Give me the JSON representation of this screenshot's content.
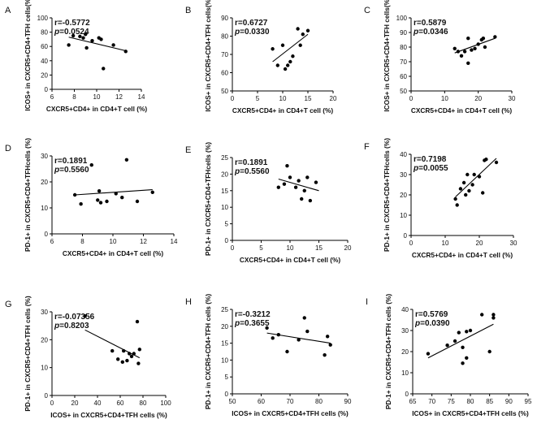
{
  "chart_data": [
    {
      "panel": "A",
      "type": "scatter",
      "stat_r": "r=-0.5772",
      "stat_p_prefix": "p",
      "stat_p": "=0.0524",
      "xlabel": "CXCR5+CD4+ in CD4+T cell (%)",
      "ylabel": "ICOS+ in CXCR5+CD4+TFH cells(%)",
      "xlim": [
        6,
        14
      ],
      "ylim": [
        0,
        100
      ],
      "xticks": [
        "6",
        "8",
        "10",
        "12",
        "14"
      ],
      "yticks": [
        "0",
        "20",
        "40",
        "60",
        "80",
        "100"
      ],
      "points": [
        [
          7.5,
          62
        ],
        [
          7.9,
          75
        ],
        [
          8.5,
          74
        ],
        [
          8.8,
          72
        ],
        [
          9,
          77
        ],
        [
          9.1,
          58
        ],
        [
          9.6,
          68
        ],
        [
          10.2,
          72
        ],
        [
          10.4,
          70
        ],
        [
          10.6,
          29
        ],
        [
          11.5,
          62
        ],
        [
          12.6,
          53
        ]
      ],
      "fit": [
        [
          7.5,
          73
        ],
        [
          12.6,
          54
        ]
      ]
    },
    {
      "panel": "B",
      "type": "scatter",
      "stat_r": "r=0.6727",
      "stat_p_prefix": "p",
      "stat_p": "=0.0330",
      "xlabel": "CXCR5+CD4+ in CD4+T cell (%)",
      "ylabel": "ICOS+ in CXCR5+CD4+TFH cells(%)",
      "xlim": [
        0,
        20
      ],
      "ylim": [
        50,
        90
      ],
      "xticks": [
        "0",
        "5",
        "10",
        "15",
        "20"
      ],
      "yticks": [
        "50",
        "60",
        "70",
        "80",
        "90"
      ],
      "points": [
        [
          8,
          73
        ],
        [
          9,
          64
        ],
        [
          10,
          75
        ],
        [
          10.5,
          62
        ],
        [
          11,
          64
        ],
        [
          11.5,
          66
        ],
        [
          12,
          69
        ],
        [
          13,
          84
        ],
        [
          13.5,
          75
        ],
        [
          14,
          81
        ],
        [
          15,
          83
        ]
      ],
      "fit": [
        [
          8,
          66
        ],
        [
          15,
          81
        ]
      ]
    },
    {
      "panel": "C",
      "type": "scatter",
      "stat_r": "r=0.5879",
      "stat_p_prefix": "p",
      "stat_p": "=0.0346",
      "xlabel": "CXCR5+CD4+ in CD4+T cell (%)",
      "ylabel": "ICOS+ in CXCR5+CD4+TFH cells(%)",
      "xlim": [
        0,
        30
      ],
      "ylim": [
        50,
        100
      ],
      "xticks": [
        "0",
        "10",
        "20",
        "30"
      ],
      "yticks": [
        "50",
        "60",
        "70",
        "80",
        "90",
        "100"
      ],
      "points": [
        [
          13,
          79
        ],
        [
          14,
          77
        ],
        [
          15,
          74
        ],
        [
          16,
          77
        ],
        [
          17,
          69
        ],
        [
          17,
          86
        ],
        [
          18,
          78
        ],
        [
          19,
          79
        ],
        [
          20,
          82
        ],
        [
          21,
          85
        ],
        [
          21.5,
          86
        ],
        [
          22,
          80
        ],
        [
          25,
          87
        ]
      ],
      "fit": [
        [
          13,
          76
        ],
        [
          25,
          86
        ]
      ]
    },
    {
      "panel": "D",
      "type": "scatter",
      "stat_r": "r=0.1891",
      "stat_p_prefix": "p",
      "stat_p": "=0.5560",
      "xlabel": "CXCR5+CD4+ in CD4+T cell (%)",
      "ylabel": "PD-1+ in CXCR5+CD4+TFHcells (%)",
      "xlim": [
        6,
        14
      ],
      "ylim": [
        0,
        30
      ],
      "xticks": [
        "6",
        "8",
        "10",
        "12",
        "14"
      ],
      "yticks": [
        "0",
        "10",
        "20",
        "30"
      ],
      "points": [
        [
          7.5,
          15
        ],
        [
          7.9,
          11.5
        ],
        [
          8.6,
          26.5
        ],
        [
          9,
          13
        ],
        [
          9.1,
          16.5
        ],
        [
          9.2,
          12
        ],
        [
          9.6,
          12.5
        ],
        [
          10.2,
          15.5
        ],
        [
          10.6,
          14
        ],
        [
          10.9,
          28.5
        ],
        [
          11.6,
          12.5
        ],
        [
          12.6,
          16
        ]
      ],
      "fit": [
        [
          7.5,
          15
        ],
        [
          12.6,
          17
        ]
      ]
    },
    {
      "panel": "E",
      "type": "scatter",
      "stat_r": "r=0.1891",
      "stat_p_prefix": "p",
      "stat_p": "=0.5560",
      "xlabel": "CXCR5+CD4+ in CD4+T cell (%)",
      "ylabel": "PD-1+ in CXCR5+CD4+TFHcells (%)",
      "xlim": [
        0,
        20
      ],
      "ylim": [
        0,
        25
      ],
      "xticks": [
        "0",
        "5",
        "10",
        "15",
        "20"
      ],
      "yticks": [
        "0",
        "5",
        "10",
        "15",
        "20",
        "25"
      ],
      "points": [
        [
          8,
          16
        ],
        [
          9,
          17
        ],
        [
          9.5,
          22.5
        ],
        [
          10,
          19
        ],
        [
          11,
          16
        ],
        [
          11.5,
          18
        ],
        [
          12,
          12.5
        ],
        [
          12.5,
          15
        ],
        [
          13,
          19
        ],
        [
          13.5,
          12
        ],
        [
          14.5,
          17.5
        ]
      ],
      "fit": [
        [
          8,
          18.5
        ],
        [
          15,
          15
        ]
      ]
    },
    {
      "panel": "F",
      "type": "scatter",
      "stat_r": "r=0.7198",
      "stat_p_prefix": "p",
      "stat_p": "=0.0055",
      "xlabel": "CXCR5+CD4+ in CD4+T cell (%)",
      "ylabel": "PD-1+ in CXCR5+CD4+TFHcells (%)",
      "xlim": [
        0,
        30
      ],
      "ylim": [
        0,
        40
      ],
      "xticks": [
        "0",
        "10",
        "20",
        "30"
      ],
      "yticks": [
        "0",
        "10",
        "20",
        "30",
        "40"
      ],
      "points": [
        [
          13,
          18
        ],
        [
          13.5,
          15
        ],
        [
          14.5,
          23
        ],
        [
          15.5,
          26
        ],
        [
          16,
          20
        ],
        [
          16.5,
          30
        ],
        [
          17,
          22
        ],
        [
          18,
          25
        ],
        [
          18.5,
          30
        ],
        [
          20,
          29
        ],
        [
          21,
          21
        ],
        [
          21.5,
          37
        ],
        [
          22,
          37.5
        ],
        [
          25,
          36
        ]
      ],
      "fit": [
        [
          13,
          19
        ],
        [
          25,
          38
        ]
      ]
    },
    {
      "panel": "G",
      "type": "scatter",
      "stat_r": "r=-0.07356",
      "stat_p_prefix": "p",
      "stat_p": "=0.8203",
      "xlabel": "ICOS+ in CXCR5+CD4+TFH cells (%)",
      "ylabel": "PD-1+ in CXCR5+CD4+TFH cells (%)",
      "xlim": [
        0,
        100
      ],
      "ylim": [
        0,
        30
      ],
      "xticks": [
        "0",
        "20",
        "40",
        "60",
        "80",
        "100"
      ],
      "yticks": [
        "0",
        "10",
        "20",
        "30"
      ],
      "points": [
        [
          29,
          28.5
        ],
        [
          53,
          16
        ],
        [
          58,
          13
        ],
        [
          62,
          12
        ],
        [
          63,
          16
        ],
        [
          66,
          12.5
        ],
        [
          68,
          15
        ],
        [
          70,
          14
        ],
        [
          72,
          15
        ],
        [
          75,
          26.5
        ],
        [
          76,
          11.5
        ],
        [
          77,
          16.5
        ]
      ],
      "fit": [
        [
          29,
          23.5
        ],
        [
          77,
          13.5
        ]
      ]
    },
    {
      "panel": "H",
      "type": "scatter",
      "stat_r": "r=-0.3212",
      "stat_p_prefix": "p",
      "stat_p": "=0.3655",
      "xlabel": "ICOS+ in CXCR5+CD4+TFH cells (%)",
      "ylabel": "PD-1+ in CXCR5+CD4+TFH cells (%)",
      "xlim": [
        50,
        90
      ],
      "ylim": [
        0,
        25
      ],
      "xticks": [
        "50",
        "60",
        "70",
        "80",
        "90"
      ],
      "yticks": [
        "0",
        "5",
        "10",
        "15",
        "20",
        "25"
      ],
      "points": [
        [
          62,
          19.5
        ],
        [
          64,
          16.5
        ],
        [
          66,
          17.5
        ],
        [
          69,
          12.5
        ],
        [
          73,
          16
        ],
        [
          75,
          22.5
        ],
        [
          76,
          18.5
        ],
        [
          82,
          11.5
        ],
        [
          83,
          17
        ],
        [
          84,
          14.5
        ]
      ],
      "fit": [
        [
          62,
          18
        ],
        [
          84,
          15
        ]
      ]
    },
    {
      "panel": "I",
      "type": "scatter",
      "stat_r": "r=0.5769",
      "stat_p_prefix": "p",
      "stat_p": "=0.0390",
      "xlabel": "ICOS+ in CXCR5+CD4+TFH cells (%)",
      "ylabel": "PD-1+ in CXCR5+CD4+TFH cells (%)",
      "xlim": [
        65,
        95
      ],
      "ylim": [
        0,
        40
      ],
      "xticks": [
        "65",
        "70",
        "75",
        "80",
        "85",
        "90",
        "95"
      ],
      "yticks": [
        "0",
        "10",
        "20",
        "30",
        "40"
      ],
      "points": [
        [
          69,
          19
        ],
        [
          74,
          23
        ],
        [
          76,
          25
        ],
        [
          77,
          29
        ],
        [
          78,
          14.5
        ],
        [
          78,
          22
        ],
        [
          79,
          29.5
        ],
        [
          79,
          17
        ],
        [
          80,
          30
        ],
        [
          83,
          37.5
        ],
        [
          85,
          20
        ],
        [
          86,
          37.5
        ],
        [
          86,
          36
        ]
      ],
      "fit": [
        [
          69,
          17
        ],
        [
          86,
          33
        ]
      ]
    }
  ]
}
